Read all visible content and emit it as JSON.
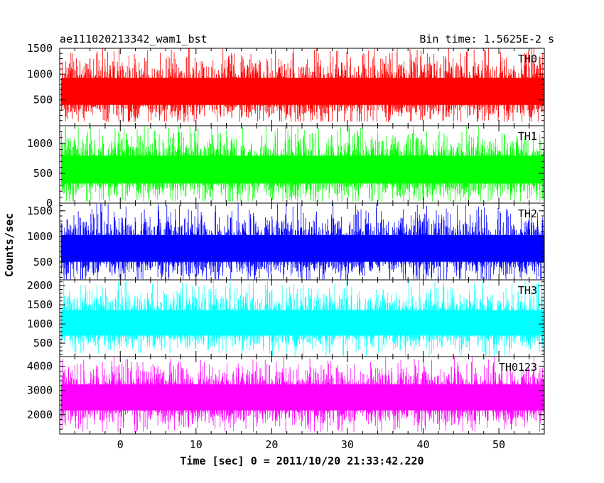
{
  "header": {
    "title": "ae111020213342_wam1_bst",
    "bin_time": "Bin time: 1.5625E-2 s"
  },
  "chart_data": {
    "type": "line",
    "render_style": "dense histogram-style noise trace per panel",
    "xlabel": "Time [sec] 0 = 2011/10/20 21:33:42.220",
    "ylabel": "Counts/sec",
    "xlim": [
      -8,
      56
    ],
    "x_ticks": [
      0,
      10,
      20,
      30,
      40,
      50
    ],
    "x_tick_labels": [
      "0",
      "10",
      "20",
      "30",
      "40",
      "50"
    ],
    "data_x_range": [
      -7.8,
      56.0
    ],
    "bin_time_s": 0.015625,
    "grid": false,
    "panels": [
      {
        "name": "TH0",
        "color": "#ff0000",
        "ylim": [
          0,
          1500
        ],
        "y_ticks": [
          500,
          1000,
          1500
        ],
        "y_tick_labels": [
          "500",
          "1000",
          "1500"
        ],
        "mean": 650,
        "typical_low": 200,
        "typical_high": 1150,
        "max": 1500,
        "min": 80
      },
      {
        "name": "TH1",
        "color": "#00ff00",
        "ylim": [
          0,
          1300
        ],
        "y_ticks": [
          0,
          500,
          1000
        ],
        "y_tick_labels": [
          "0",
          "500",
          "1000"
        ],
        "mean": 550,
        "typical_low": 150,
        "typical_high": 1000,
        "max": 1300,
        "min": 30
      },
      {
        "name": "TH2",
        "color": "#0000ff",
        "ylim": [
          150,
          1650
        ],
        "y_ticks": [
          500,
          1000,
          1500
        ],
        "y_tick_labels": [
          "500",
          "1000",
          "1500"
        ],
        "mean": 750,
        "typical_low": 300,
        "typical_high": 1250,
        "max": 1650,
        "min": 160
      },
      {
        "name": "TH3",
        "color": "#00ffff",
        "ylim": [
          150,
          2150
        ],
        "y_ticks": [
          500,
          1000,
          1500,
          2000
        ],
        "y_tick_labels": [
          "500",
          "1000",
          "1500",
          "2000"
        ],
        "mean": 1000,
        "typical_low": 450,
        "typical_high": 1650,
        "max": 2150,
        "min": 170
      },
      {
        "name": "TH0123",
        "color": "#ff00ff",
        "ylim": [
          1200,
          4400
        ],
        "y_ticks": [
          2000,
          3000,
          4000
        ],
        "y_tick_labels": [
          "2000",
          "3000",
          "4000"
        ],
        "mean": 2700,
        "typical_low": 1750,
        "typical_high": 3700,
        "max": 4400,
        "min": 1300
      }
    ]
  }
}
